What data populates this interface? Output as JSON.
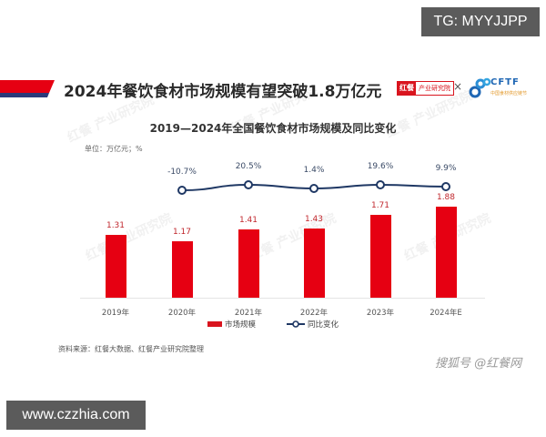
{
  "overlays": {
    "top_badge": "TG: MYYJJPP",
    "bottom_badge": "www.czzhia.com"
  },
  "header": {
    "title": "2024年餐饮食材市场规模有望突破1.8万亿元",
    "logo_left_a": "红餐",
    "logo_left_b": "产业研究院",
    "logo_separator": "×",
    "logo_right": "CFTF",
    "logo_right_sub": "中国食材供应链节"
  },
  "chart": {
    "title": "2019—2024年全国餐饮食材市场规模及同比变化",
    "unit": "单位：万亿元；%",
    "legend": {
      "bar": "市场规模",
      "line": "同比变化"
    },
    "source": "资料来源：红餐大数据、红餐产业研究院整理",
    "footer_brand": "搜狐号 @红餐网"
  },
  "colors": {
    "bar": "#e60012",
    "line": "#1f3864",
    "title": "#2a2a2a"
  },
  "chart_data": {
    "type": "bar",
    "title": "2019—2024年全国餐饮食材市场规模及同比变化",
    "categories": [
      "2019年",
      "2020年",
      "2021年",
      "2022年",
      "2023年",
      "2024年E"
    ],
    "series": [
      {
        "name": "市场规模",
        "type": "bar",
        "unit": "万亿元",
        "values": [
          1.31,
          1.17,
          1.41,
          1.43,
          1.71,
          1.88
        ]
      },
      {
        "name": "同比变化",
        "type": "line",
        "unit": "%",
        "values": [
          null,
          -10.7,
          20.5,
          1.4,
          19.6,
          9.9
        ]
      }
    ],
    "bar_labels": [
      "1.31",
      "1.17",
      "1.41",
      "1.43",
      "1.71",
      "1.88"
    ],
    "line_labels": [
      "",
      "-10.7%",
      "20.5%",
      "1.4%",
      "19.6%",
      "9.9%"
    ],
    "xlabel": "",
    "ylabel": "单位：万亿元；%",
    "grid": false,
    "legend_position": "bottom"
  }
}
